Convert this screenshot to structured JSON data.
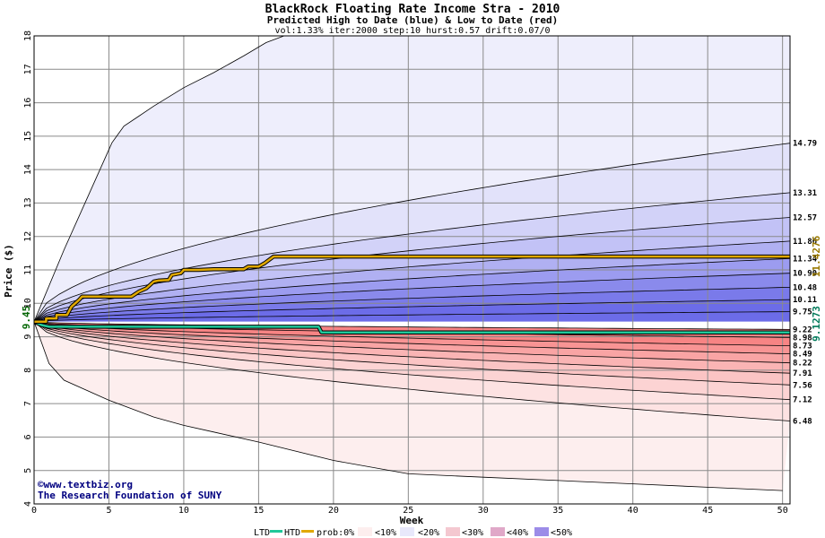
{
  "chart_data": {
    "type": "line",
    "title": "BlackRock Floating Rate Income Stra - 2010",
    "subtitle": "Predicted High to Date (blue) &  Low to Date (red)",
    "params": "vol:1.33% iter:2000 step:10 hurst:0.57 drift:0.07/0",
    "xlabel": "Week",
    "ylabel": "Price ($)",
    "xlim": [
      0,
      50.5
    ],
    "ylim": [
      4,
      18
    ],
    "x_ticks": [
      0,
      5,
      10,
      15,
      20,
      25,
      30,
      35,
      40,
      45,
      50
    ],
    "y_ticks": [
      4,
      5,
      6,
      7,
      8,
      9,
      10,
      11,
      12,
      13,
      14,
      15,
      16,
      17,
      18
    ],
    "start_value": 9.45,
    "start_label": "9.45",
    "htd_label": "11.4276",
    "ltd_label": "9.1273",
    "htd_color": "#9a7a00",
    "ltd_color": "#007a5a",
    "band_colors": {
      "blue": [
        "#eeeefc",
        "#e2e2fa",
        "#d2d2f8",
        "#c2c2f6",
        "#b0b0f2",
        "#9c9cf0",
        "#8a8aec",
        "#7a7aea",
        "#6c6ce8"
      ],
      "red": [
        "#fdeeee",
        "#fde2e2",
        "#fcd3d3",
        "#fbc4c4",
        "#fab4b4",
        "#f9a4a4",
        "#f89494",
        "#f78484"
      ]
    },
    "upper_curves": [
      {
        "label": "",
        "end": 18.6
      },
      {
        "label": "14.79",
        "end": 14.79
      },
      {
        "label": "13.31",
        "end": 13.31
      },
      {
        "label": "12.57",
        "end": 12.57
      },
      {
        "label": "11.86",
        "end": 11.86
      },
      {
        "label": "11.34",
        "end": 11.34
      },
      {
        "label": "10.90",
        "end": 10.9
      },
      {
        "label": "10.48",
        "end": 10.48
      },
      {
        "label": "10.11",
        "end": 10.11
      },
      {
        "label": "9.75",
        "end": 9.75
      }
    ],
    "lower_curves": [
      {
        "label": "9.22",
        "end": 9.22
      },
      {
        "label": "8.98",
        "end": 8.98
      },
      {
        "label": "8.73",
        "end": 8.73
      },
      {
        "label": "8.49",
        "end": 8.49
      },
      {
        "label": "8.22",
        "end": 8.22
      },
      {
        "label": "7.91",
        "end": 7.91
      },
      {
        "label": "7.56",
        "end": 7.56
      },
      {
        "label": "7.12",
        "end": 7.12
      },
      {
        "label": "6.48",
        "end": 6.48
      },
      {
        "label": "",
        "end": 4.4
      }
    ],
    "outer_upper": {
      "x": [
        0,
        2,
        4,
        5.2,
        6,
        7,
        8,
        10,
        12,
        14,
        15.5,
        17
      ],
      "y": [
        9.45,
        11.6,
        13.6,
        14.8,
        15.3,
        15.6,
        15.9,
        16.45,
        16.9,
        17.4,
        17.8,
        18.05
      ]
    },
    "outer_lower": {
      "x": [
        0,
        1,
        2,
        5,
        8,
        10,
        12,
        15,
        20,
        25,
        30,
        35,
        40,
        45,
        50
      ],
      "y": [
        9.45,
        8.2,
        7.7,
        7.1,
        6.6,
        6.35,
        6.15,
        5.85,
        5.3,
        4.9,
        4.8,
        4.7,
        4.6,
        4.5,
        4.4
      ]
    },
    "htd_series": {
      "name": "HTD",
      "x": [
        0,
        0.8,
        0.8,
        1.5,
        1.5,
        2.2,
        2.5,
        3.0,
        3.2,
        6.5,
        7.0,
        7.5,
        8.0,
        8.3,
        9.0,
        9.2,
        9.8,
        10.0,
        11.0,
        12.0,
        14.0,
        14.3,
        15.0,
        15.4,
        16.0,
        50.5
      ],
      "y": [
        9.45,
        9.45,
        9.55,
        9.55,
        9.65,
        9.65,
        9.9,
        10.1,
        10.2,
        10.2,
        10.35,
        10.45,
        10.65,
        10.68,
        10.7,
        10.85,
        10.9,
        11.0,
        11.0,
        11.02,
        11.02,
        11.1,
        11.1,
        11.2,
        11.4,
        11.4
      ]
    },
    "ltd_series": {
      "name": "LTD",
      "x": [
        0,
        0.5,
        1.0,
        19.0,
        19.2,
        50.5
      ],
      "y": [
        9.45,
        9.35,
        9.3,
        9.3,
        9.13,
        9.13
      ]
    },
    "legend": [
      "LTD",
      "HTD",
      "prob:0%",
      "<10%",
      "<20%",
      "<30%",
      "<40%",
      "<50%"
    ],
    "credit_lines": [
      "©www.textbiz.org",
      "The Research Foundation of SUNY"
    ]
  }
}
